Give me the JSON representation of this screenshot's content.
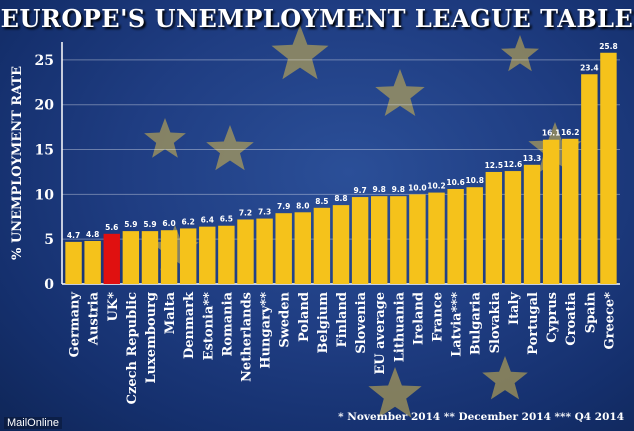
{
  "chart_data": {
    "type": "bar",
    "title": "EUROPE'S UNEMPLOYMENT LEAGUE TABLE",
    "ylabel": "% UNEMPLOYMENT RATE",
    "xlabel": "",
    "ylim": [
      0,
      27
    ],
    "yticks": [
      0,
      5,
      10,
      15,
      20,
      25
    ],
    "grid": true,
    "categories": [
      "Germany",
      "Austria",
      "UK*",
      "Czech Republic",
      "Luxembourg",
      "Malta",
      "Denmark",
      "Estonia**",
      "Romania",
      "Netherlands",
      "Hungary**",
      "Sweden",
      "Poland",
      "Belgium",
      "Finland",
      "Slovenia",
      "EU average",
      "Lithuania",
      "Ireland",
      "France",
      "Latvia***",
      "Bulgaria",
      "Slovakia",
      "Italy",
      "Portugal",
      "Cyprus",
      "Croatia",
      "Spain",
      "Greece*"
    ],
    "values": [
      4.7,
      4.8,
      5.6,
      5.9,
      5.9,
      6.0,
      6.2,
      6.4,
      6.5,
      7.2,
      7.3,
      7.9,
      8.0,
      8.5,
      8.8,
      9.7,
      9.8,
      9.8,
      10.0,
      10.2,
      10.6,
      10.8,
      12.5,
      12.6,
      13.3,
      16.1,
      16.2,
      23.4,
      25.8
    ],
    "data_labels": [
      "4.7",
      "4.8",
      "5.6",
      "5.9",
      "5.9",
      "6.0",
      "6.2",
      "6.4",
      "6.5",
      "7.2",
      "7.3",
      "7.9",
      "8.0",
      "8.5",
      "8.8",
      "9.7",
      "9.8",
      "9.8",
      "10.0",
      "10.2",
      "10.6",
      "10.8",
      "12.5",
      "12.6",
      "13.3",
      "16.1",
      "16.2",
      "23.4",
      "25.8"
    ],
    "highlight_category": "UK*",
    "colors": {
      "bar": "#f5c21b",
      "highlight": "#e01010",
      "background": "#1f3d82",
      "text": "#ffffff"
    }
  },
  "footnote": "* November 2014 ** December 2014 *** Q4 2014",
  "source": "MailOnline"
}
